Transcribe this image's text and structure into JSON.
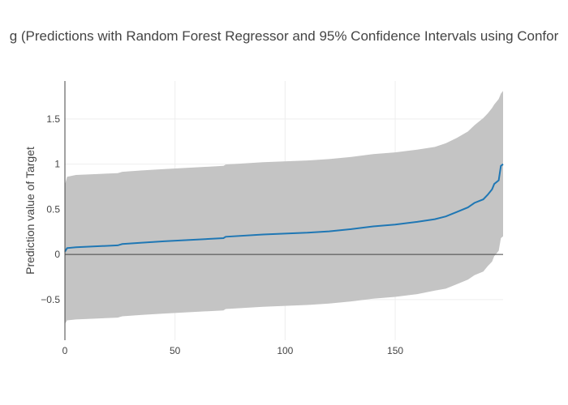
{
  "chart_data": {
    "type": "area",
    "title": "g (Predictions with Random Forest Regressor and 95% Confidence Intervals using Confor",
    "xlabel": "",
    "ylabel": "Prediction value of Target",
    "xlim": [
      0,
      199
    ],
    "ylim": [
      -0.95,
      1.92
    ],
    "x_ticks": [
      0,
      50,
      100,
      150
    ],
    "y_ticks": [
      -0.5,
      0,
      0.5,
      1,
      1.5
    ],
    "y_tick_labels": [
      "−0.5",
      "0",
      "0.5",
      "1",
      "1.5"
    ],
    "grid": true,
    "zero_line": true,
    "colors": {
      "prediction_line": "#1f77b4",
      "interval_band": "#c4c4c4",
      "grid": "#eeeeee",
      "axis": "#444444"
    },
    "series": [
      {
        "role": "prediction",
        "points": [
          [
            0,
            0.03
          ],
          [
            1,
            0.07
          ],
          [
            5,
            0.08
          ],
          [
            24,
            0.1
          ],
          [
            26,
            0.115
          ],
          [
            35,
            0.13
          ],
          [
            45,
            0.145
          ],
          [
            72,
            0.18
          ],
          [
            73,
            0.195
          ],
          [
            90,
            0.22
          ],
          [
            110,
            0.24
          ],
          [
            120,
            0.255
          ],
          [
            130,
            0.28
          ],
          [
            140,
            0.31
          ],
          [
            150,
            0.33
          ],
          [
            160,
            0.36
          ],
          [
            168,
            0.39
          ],
          [
            173,
            0.42
          ],
          [
            178,
            0.47
          ],
          [
            183,
            0.52
          ],
          [
            186,
            0.57
          ],
          [
            190,
            0.61
          ],
          [
            192,
            0.66
          ],
          [
            194,
            0.72
          ],
          [
            195,
            0.78
          ],
          [
            197,
            0.82
          ],
          [
            198,
            0.98
          ],
          [
            199,
            1.0
          ]
        ]
      },
      {
        "role": "upper_bound",
        "points": [
          [
            0,
            0.77
          ],
          [
            1,
            0.86
          ],
          [
            5,
            0.88
          ],
          [
            24,
            0.9
          ],
          [
            26,
            0.915
          ],
          [
            35,
            0.93
          ],
          [
            45,
            0.945
          ],
          [
            72,
            0.98
          ],
          [
            73,
            0.995
          ],
          [
            90,
            1.02
          ],
          [
            110,
            1.04
          ],
          [
            120,
            1.055
          ],
          [
            130,
            1.08
          ],
          [
            140,
            1.11
          ],
          [
            150,
            1.13
          ],
          [
            160,
            1.16
          ],
          [
            168,
            1.19
          ],
          [
            173,
            1.23
          ],
          [
            178,
            1.29
          ],
          [
            183,
            1.36
          ],
          [
            186,
            1.43
          ],
          [
            190,
            1.51
          ],
          [
            192,
            1.56
          ],
          [
            194,
            1.62
          ],
          [
            195,
            1.66
          ],
          [
            197,
            1.72
          ],
          [
            198,
            1.78
          ],
          [
            199,
            1.81
          ]
        ]
      },
      {
        "role": "lower_bound",
        "points": [
          [
            0,
            -0.77
          ],
          [
            1,
            -0.73
          ],
          [
            5,
            -0.72
          ],
          [
            24,
            -0.7
          ],
          [
            26,
            -0.685
          ],
          [
            35,
            -0.67
          ],
          [
            45,
            -0.655
          ],
          [
            72,
            -0.62
          ],
          [
            73,
            -0.605
          ],
          [
            90,
            -0.58
          ],
          [
            110,
            -0.56
          ],
          [
            120,
            -0.545
          ],
          [
            130,
            -0.52
          ],
          [
            140,
            -0.49
          ],
          [
            150,
            -0.47
          ],
          [
            160,
            -0.44
          ],
          [
            168,
            -0.4
          ],
          [
            173,
            -0.38
          ],
          [
            178,
            -0.33
          ],
          [
            183,
            -0.28
          ],
          [
            186,
            -0.23
          ],
          [
            190,
            -0.19
          ],
          [
            192,
            -0.13
          ],
          [
            194,
            -0.08
          ],
          [
            195,
            -0.02
          ],
          [
            197,
            0.04
          ],
          [
            198,
            0.18
          ],
          [
            199,
            0.2
          ]
        ]
      }
    ]
  }
}
